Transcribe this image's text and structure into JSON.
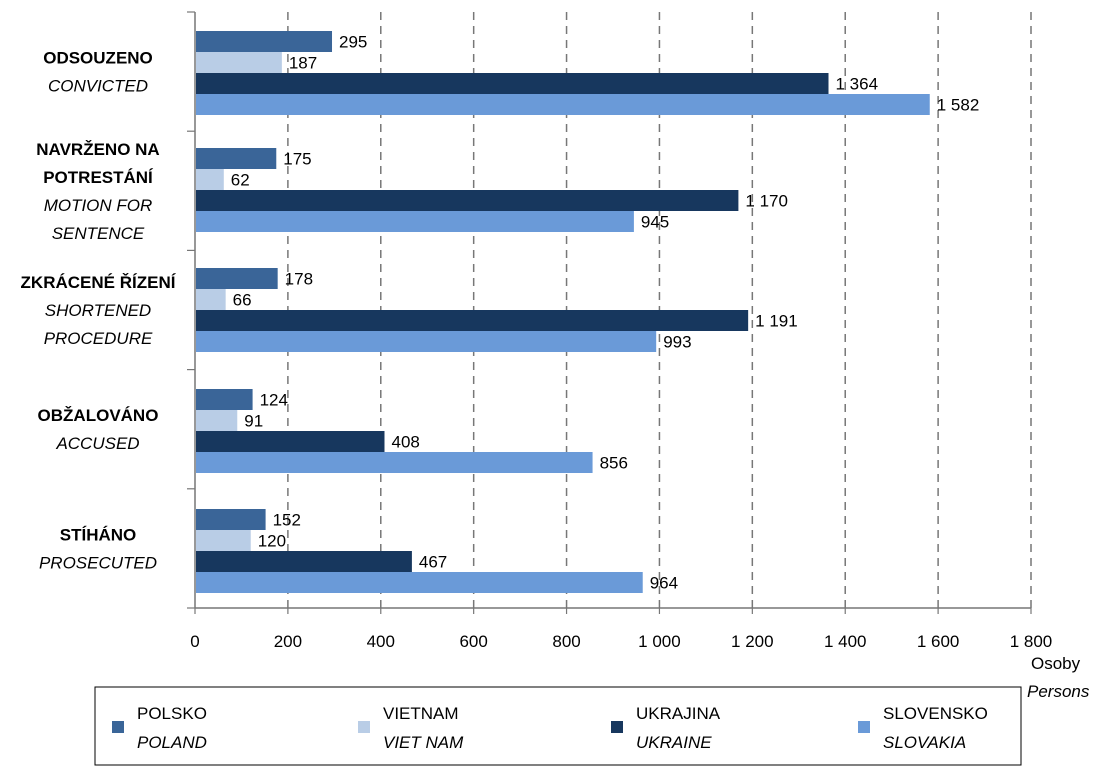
{
  "chart_data": {
    "type": "bar",
    "orientation": "horizontal",
    "categories": [
      {
        "cs": [
          "ODSOUZENO"
        ],
        "en": [
          "CONVICTED"
        ]
      },
      {
        "cs": [
          "NAVRŽENO NA",
          "POTRESTÁNÍ"
        ],
        "en": [
          "MOTION FOR",
          "SENTENCE"
        ]
      },
      {
        "cs": [
          "ZKRÁCENÉ ŘÍZENÍ"
        ],
        "en": [
          "SHORTENED",
          "PROCEDURE"
        ]
      },
      {
        "cs": [
          "OBŽALOVÁNO"
        ],
        "en": [
          "ACCUSED"
        ]
      },
      {
        "cs": [
          "STÍHÁNO"
        ],
        "en": [
          "PROSECUTED"
        ]
      }
    ],
    "series": [
      {
        "name": "POLSKO",
        "name_en": "POLAND",
        "color": "#3a6598",
        "values": [
          295,
          175,
          178,
          124,
          152
        ],
        "labels": [
          "295",
          "175",
          "178",
          "124",
          "152"
        ]
      },
      {
        "name": "VIETNAM",
        "name_en": "VIET NAM",
        "color": "#b9cde6",
        "values": [
          187,
          62,
          66,
          91,
          120
        ],
        "labels": [
          "187",
          "62",
          "66",
          "91",
          "120"
        ]
      },
      {
        "name": "UKRAJINA",
        "name_en": "UKRAINE",
        "color": "#17375e",
        "values": [
          1364,
          1170,
          1191,
          408,
          467
        ],
        "labels": [
          "1 364",
          "1 170",
          "1 191",
          "408",
          "467"
        ]
      },
      {
        "name": "SLOVENSKO",
        "name_en": "SLOVAKIA",
        "color": "#6a9ad8",
        "values": [
          1582,
          945,
          993,
          856,
          964
        ],
        "labels": [
          "1 582",
          "945",
          "993",
          "856",
          "964"
        ]
      }
    ],
    "xlim": [
      0,
      1800
    ],
    "x_ticks": [
      0,
      200,
      400,
      600,
      800,
      1000,
      1200,
      1400,
      1600,
      1800
    ],
    "x_tick_labels": [
      "0",
      "200",
      "400",
      "600",
      "800",
      "1 000",
      "1 200",
      "1 400",
      "1 600",
      "1 800"
    ],
    "xlabel": "Osoby",
    "xlabel_en": "Persons",
    "grid": "vertical-dashed",
    "legend_position": "bottom"
  }
}
